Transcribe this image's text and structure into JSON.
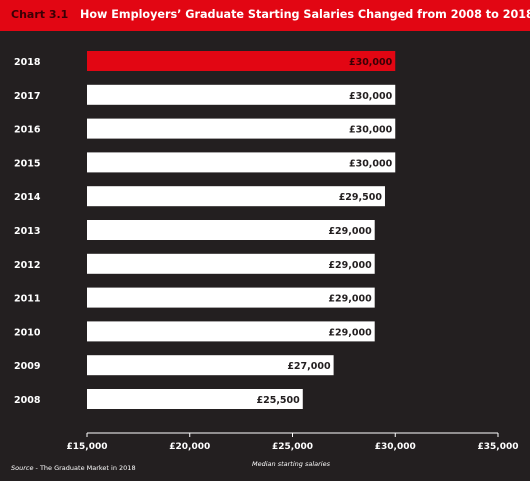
{
  "header": {
    "chart_number": "Chart 3.1",
    "title": "How Employers’ Graduate Starting Salaries Changed from 2008 to 2018"
  },
  "footer": {
    "source_label": "Source",
    "source_text": " - The Graduate Market in 2018"
  },
  "colors": {
    "background": "#231f20",
    "header": "#e20613",
    "highlight_bar": "#e20613",
    "bar": "#ffffff",
    "text": "#ffffff"
  },
  "chart_data": {
    "type": "bar",
    "orientation": "horizontal",
    "title": "How Employers’ Graduate Starting Salaries Changed from 2008 to 2018",
    "xlabel": "Median starting salaries",
    "ylabel": "",
    "xlim": [
      15000,
      35000
    ],
    "x_ticks": [
      15000,
      20000,
      25000,
      30000,
      35000
    ],
    "x_tick_labels": [
      "£15,000",
      "£20,000",
      "£25,000",
      "£30,000",
      "£35,000"
    ],
    "grid": false,
    "categories": [
      "2018",
      "2017",
      "2016",
      "2015",
      "2014",
      "2013",
      "2012",
      "2011",
      "2010",
      "2009",
      "2008"
    ],
    "values": [
      30000,
      30000,
      30000,
      30000,
      29500,
      29000,
      29000,
      29000,
      29000,
      27000,
      25500
    ],
    "data_labels": [
      "£30,000",
      "£30,000",
      "£30,000",
      "£30,000",
      "£29,500",
      "£29,000",
      "£29,000",
      "£29,000",
      "£29,000",
      "£27,000",
      "£25,500"
    ],
    "highlight": "2018"
  }
}
